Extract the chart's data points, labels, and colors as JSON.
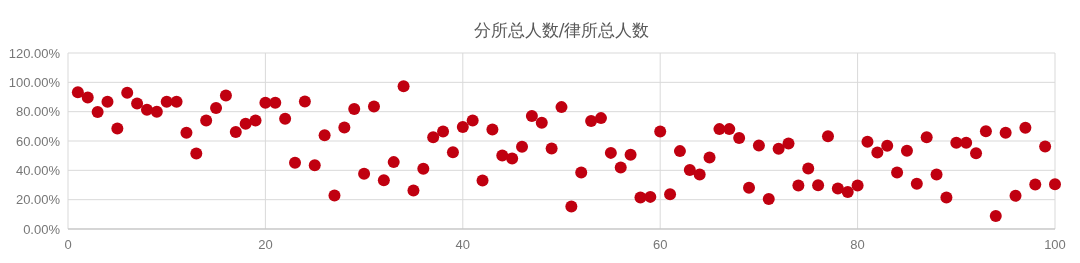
{
  "chart_data": {
    "type": "scatter",
    "title": "分所总人数/律所总人数",
    "x": [
      1,
      2,
      3,
      4,
      5,
      6,
      7,
      8,
      9,
      10,
      11,
      12,
      13,
      14,
      15,
      16,
      17,
      18,
      19,
      20,
      21,
      22,
      23,
      24,
      25,
      26,
      27,
      28,
      29,
      30,
      31,
      32,
      33,
      34,
      35,
      36,
      37,
      38,
      39,
      40,
      41,
      42,
      43,
      44,
      45,
      46,
      47,
      48,
      49,
      50,
      51,
      52,
      53,
      54,
      55,
      56,
      57,
      58,
      59,
      60,
      61,
      62,
      63,
      64,
      65,
      66,
      67,
      68,
      69,
      70,
      71,
      72,
      73,
      74,
      75,
      76,
      77,
      78,
      79,
      80,
      81,
      82,
      83,
      84,
      85,
      86,
      87,
      88,
      89,
      90,
      91,
      92,
      93,
      94,
      95,
      96,
      97,
      98,
      99,
      100
    ],
    "values": [
      93.2,
      89.7,
      79.7,
      86.8,
      68.6,
      92.9,
      85.6,
      81.3,
      80.0,
      86.8,
      86.8,
      65.6,
      51.5,
      74.0,
      82.5,
      91.1,
      66.1,
      71.8,
      74.0,
      86.1,
      86.1,
      75.2,
      45.1,
      87.0,
      43.5,
      64.0,
      22.8,
      69.2,
      81.8,
      37.6,
      83.6,
      33.3,
      45.6,
      97.3,
      26.2,
      41.0,
      62.6,
      66.5,
      52.4,
      69.5,
      74.0,
      33.0,
      67.9,
      50.1,
      48.1,
      56.0,
      77.0,
      72.4,
      54.9,
      83.1,
      15.3,
      38.5,
      73.6,
      75.6,
      51.9,
      41.9,
      50.6,
      21.4,
      21.9,
      66.5,
      23.7,
      53.1,
      40.3,
      37.1,
      48.7,
      68.1,
      68.1,
      62.0,
      28.2,
      56.9,
      20.5,
      54.7,
      58.3,
      29.6,
      41.2,
      29.8,
      63.3,
      27.6,
      25.3,
      29.6,
      59.5,
      52.2,
      56.7,
      38.5,
      53.3,
      30.8,
      62.6,
      37.1,
      21.4,
      58.8,
      58.8,
      51.7,
      66.7,
      8.9,
      65.6,
      22.6,
      69.0,
      30.3,
      56.3,
      30.5
    ],
    "color": "#c00010",
    "marker": "circle",
    "grid": true,
    "xlim": [
      0,
      100
    ],
    "xticks": [
      0,
      20,
      40,
      60,
      80,
      100
    ],
    "ylim": [
      0,
      120
    ],
    "yticks": [
      {
        "value": 0,
        "label": "0.00%"
      },
      {
        "value": 20,
        "label": "20.00%"
      },
      {
        "value": 40,
        "label": "40.00%"
      },
      {
        "value": 60,
        "label": "60.00%"
      },
      {
        "value": 80,
        "label": "80.00%"
      },
      {
        "value": 100,
        "label": "100.00%"
      },
      {
        "value": 120,
        "label": "120.00%"
      }
    ]
  }
}
